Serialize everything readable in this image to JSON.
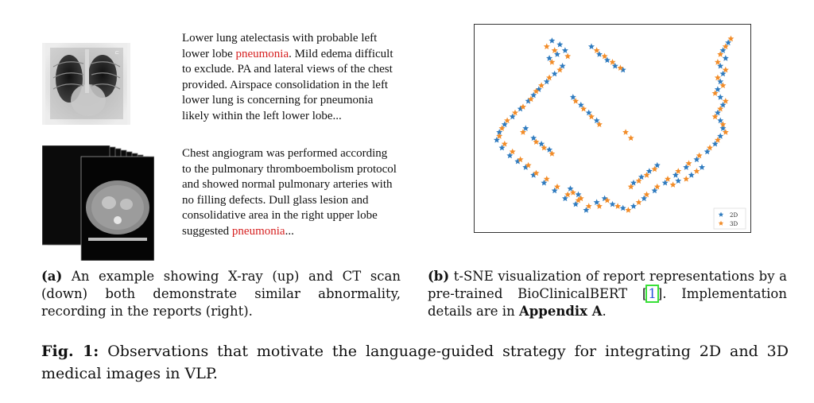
{
  "panel_a": {
    "report_xray": {
      "before": "Lower lung atelectasis with probable left lower lobe ",
      "highlight": "pneumonia",
      "after": ". Mild edema difficult to exclude. PA and lateral views of the chest provided. Airspace consolidation in the left lower lung is concerning for pneumonia likely within the left lower lobe..."
    },
    "report_ct": {
      "before": "Chest angiogram was performed according to the pulmonary thromboembolism protocol and showed normal pulmonary arteries with no filling defects. Dull glass lesion and consolidative area in the right upper lobe suggested ",
      "highlight": "pneumonia",
      "after": "..."
    },
    "caption_tag": "(a)",
    "caption_text": " An example showing X-ray (up) and CT scan (down) both demonstrate similar abnormality, recording in the reports (right)."
  },
  "panel_b": {
    "caption_tag": "(b)",
    "caption_text_1": " t-SNE visualization of report representations by a pre-trained BioClinicalBERT [",
    "citation": "1",
    "caption_text_2": "]. Implementation details are in ",
    "caption_bold": "Appendix A",
    "caption_text_3": "."
  },
  "figure_caption": {
    "label": "Fig. 1:",
    "text": " Observations that motivate the language-guided strategy for integrating 2D and 3D medical images in VLP."
  },
  "chart_data": {
    "type": "scatter",
    "title": "",
    "xlabel": "",
    "ylabel": "",
    "xlim": [
      0,
      100
    ],
    "ylim": [
      0,
      100
    ],
    "grid": false,
    "legend_position": "bottom-right",
    "series": [
      {
        "name": "2D",
        "color": "#2f7bbf",
        "marker": "star",
        "points": [
          [
            27,
            95
          ],
          [
            30,
            93
          ],
          [
            32,
            90
          ],
          [
            29,
            88
          ],
          [
            26,
            86
          ],
          [
            31,
            82
          ],
          [
            28,
            78
          ],
          [
            25,
            74
          ],
          [
            22,
            70
          ],
          [
            20,
            67
          ],
          [
            18,
            64
          ],
          [
            15,
            60
          ],
          [
            12,
            56
          ],
          [
            9,
            52
          ],
          [
            7,
            48
          ],
          [
            6,
            44
          ],
          [
            8,
            40
          ],
          [
            11,
            36
          ],
          [
            14,
            33
          ],
          [
            17,
            30
          ],
          [
            20,
            26
          ],
          [
            24,
            22
          ],
          [
            28,
            18
          ],
          [
            32,
            14
          ],
          [
            36,
            11
          ],
          [
            40,
            8
          ],
          [
            44,
            12
          ],
          [
            47,
            14
          ],
          [
            50,
            11
          ],
          [
            54,
            9
          ],
          [
            58,
            10
          ],
          [
            62,
            14
          ],
          [
            66,
            18
          ],
          [
            70,
            22
          ],
          [
            74,
            26
          ],
          [
            78,
            30
          ],
          [
            82,
            34
          ],
          [
            86,
            38
          ],
          [
            89,
            42
          ],
          [
            91,
            46
          ],
          [
            92,
            50
          ],
          [
            91,
            54
          ],
          [
            90,
            58
          ],
          [
            92,
            62
          ],
          [
            91,
            66
          ],
          [
            90,
            70
          ],
          [
            91,
            74
          ],
          [
            92,
            78
          ],
          [
            91,
            82
          ],
          [
            93,
            86
          ],
          [
            92,
            90
          ],
          [
            94,
            94
          ],
          [
            42,
            92
          ],
          [
            45,
            88
          ],
          [
            48,
            85
          ],
          [
            51,
            82
          ],
          [
            54,
            80
          ],
          [
            35,
            66
          ],
          [
            38,
            62
          ],
          [
            41,
            58
          ],
          [
            44,
            54
          ],
          [
            20,
            45
          ],
          [
            23,
            42
          ],
          [
            26,
            39
          ],
          [
            17,
            50
          ],
          [
            58,
            22
          ],
          [
            61,
            25
          ],
          [
            64,
            28
          ],
          [
            67,
            31
          ],
          [
            34,
            19
          ],
          [
            37,
            16
          ],
          [
            84,
            30
          ],
          [
            80,
            26
          ],
          [
            75,
            23
          ]
        ]
      },
      {
        "name": "3D",
        "color": "#f28c28",
        "marker": "star",
        "points": [
          [
            25,
            92
          ],
          [
            28,
            90
          ],
          [
            33,
            87
          ],
          [
            27,
            84
          ],
          [
            30,
            80
          ],
          [
            26,
            76
          ],
          [
            23,
            72
          ],
          [
            21,
            69
          ],
          [
            19,
            65
          ],
          [
            16,
            61
          ],
          [
            13,
            58
          ],
          [
            10,
            54
          ],
          [
            8,
            50
          ],
          [
            7,
            46
          ],
          [
            9,
            42
          ],
          [
            12,
            38
          ],
          [
            15,
            34
          ],
          [
            18,
            31
          ],
          [
            21,
            27
          ],
          [
            25,
            24
          ],
          [
            29,
            20
          ],
          [
            33,
            16
          ],
          [
            37,
            13
          ],
          [
            41,
            10
          ],
          [
            45,
            10
          ],
          [
            48,
            13
          ],
          [
            52,
            10
          ],
          [
            56,
            8
          ],
          [
            60,
            12
          ],
          [
            63,
            16
          ],
          [
            67,
            20
          ],
          [
            71,
            24
          ],
          [
            75,
            28
          ],
          [
            79,
            32
          ],
          [
            83,
            36
          ],
          [
            87,
            40
          ],
          [
            90,
            44
          ],
          [
            93,
            48
          ],
          [
            92,
            52
          ],
          [
            89,
            56
          ],
          [
            91,
            60
          ],
          [
            93,
            64
          ],
          [
            89,
            68
          ],
          [
            92,
            72
          ],
          [
            90,
            76
          ],
          [
            93,
            80
          ],
          [
            90,
            84
          ],
          [
            91,
            88
          ],
          [
            93,
            92
          ],
          [
            95,
            96
          ],
          [
            44,
            90
          ],
          [
            47,
            87
          ],
          [
            50,
            84
          ],
          [
            53,
            81
          ],
          [
            36,
            64
          ],
          [
            39,
            60
          ],
          [
            42,
            56
          ],
          [
            45,
            52
          ],
          [
            21,
            43
          ],
          [
            24,
            40
          ],
          [
            27,
            37
          ],
          [
            16,
            48
          ],
          [
            57,
            20
          ],
          [
            60,
            23
          ],
          [
            63,
            26
          ],
          [
            66,
            29
          ],
          [
            35,
            17
          ],
          [
            38,
            14
          ],
          [
            82,
            28
          ],
          [
            78,
            24
          ],
          [
            73,
            21
          ],
          [
            55,
            48
          ],
          [
            57,
            45
          ]
        ]
      }
    ]
  }
}
